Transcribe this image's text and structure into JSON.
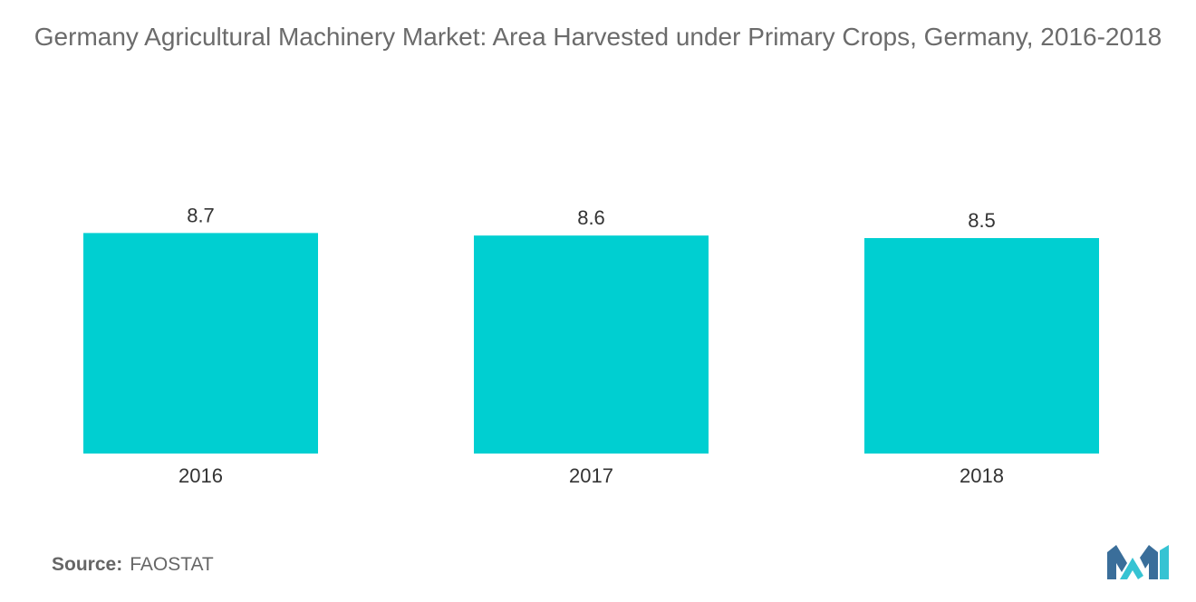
{
  "title": "Germany Agricultural Machinery Market: Area Harvested under Primary Crops, Germany, 2016-2018",
  "source": {
    "label": "Source:",
    "value": "FAOSTAT"
  },
  "colors": {
    "bar": "#00cfd1",
    "logo_dark": "#3a6e9a",
    "logo_light": "#36c3d3"
  },
  "logo": {
    "icon": "mordor-logo-icon"
  },
  "chart_data": {
    "type": "bar",
    "title": "Germany Agricultural Machinery Market: Area Harvested under Primary Crops, Germany, 2016-2018",
    "categories": [
      "2016",
      "2017",
      "2018"
    ],
    "values": [
      8.7,
      8.6,
      8.5
    ],
    "data_labels": [
      "8.7",
      "8.6",
      "8.5"
    ],
    "xlabel": "",
    "ylabel": "",
    "grid": false,
    "legend": "none"
  }
}
